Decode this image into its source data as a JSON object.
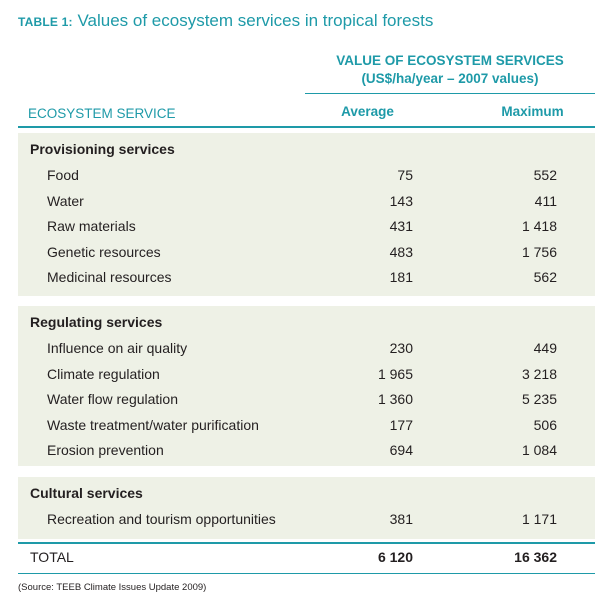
{
  "title": {
    "label": "TABLE 1:",
    "text": "Values of ecosystem services in tropical forests"
  },
  "header": {
    "value_line1": "VALUE OF ECOSYSTEM SERVICES",
    "value_line2": "(US$/ha/year – 2007 values)",
    "service_col": "ECOSYSTEM SERVICE",
    "avg_col": "Average",
    "max_col": "Maximum"
  },
  "sections": [
    {
      "title": "Provisioning services",
      "rows": [
        {
          "name": "Food",
          "average": "75",
          "maximum": "552"
        },
        {
          "name": "Water",
          "average": "143",
          "maximum": "411"
        },
        {
          "name": "Raw materials",
          "average": "431",
          "maximum": "1 418"
        },
        {
          "name": "Genetic resources",
          "average": "483",
          "maximum": "1 756"
        },
        {
          "name": "Medicinal resources",
          "average": "181",
          "maximum": "562"
        }
      ]
    },
    {
      "title": "Regulating services",
      "rows": [
        {
          "name": "Influence on air quality",
          "average": "230",
          "maximum": "449"
        },
        {
          "name": "Climate regulation",
          "average": "1 965",
          "maximum": "3 218"
        },
        {
          "name": "Water flow regulation",
          "average": "1 360",
          "maximum": "5 235"
        },
        {
          "name": "Waste treatment/water purification",
          "average": "177",
          "maximum": "506"
        },
        {
          "name": "Erosion prevention",
          "average": "694",
          "maximum": "1 084"
        }
      ]
    },
    {
      "title": "Cultural services",
      "rows": [
        {
          "name": "Recreation and tourism opportunities",
          "average": "381",
          "maximum": "1 171"
        }
      ]
    }
  ],
  "total": {
    "label": "TOTAL",
    "average": "6 120",
    "maximum": "16 362"
  },
  "source": "(Source: TEEB Climate Issues Update 2009)",
  "colors": {
    "accent": "#1e9aa8",
    "band": "#eef1e6",
    "text": "#231f20"
  }
}
